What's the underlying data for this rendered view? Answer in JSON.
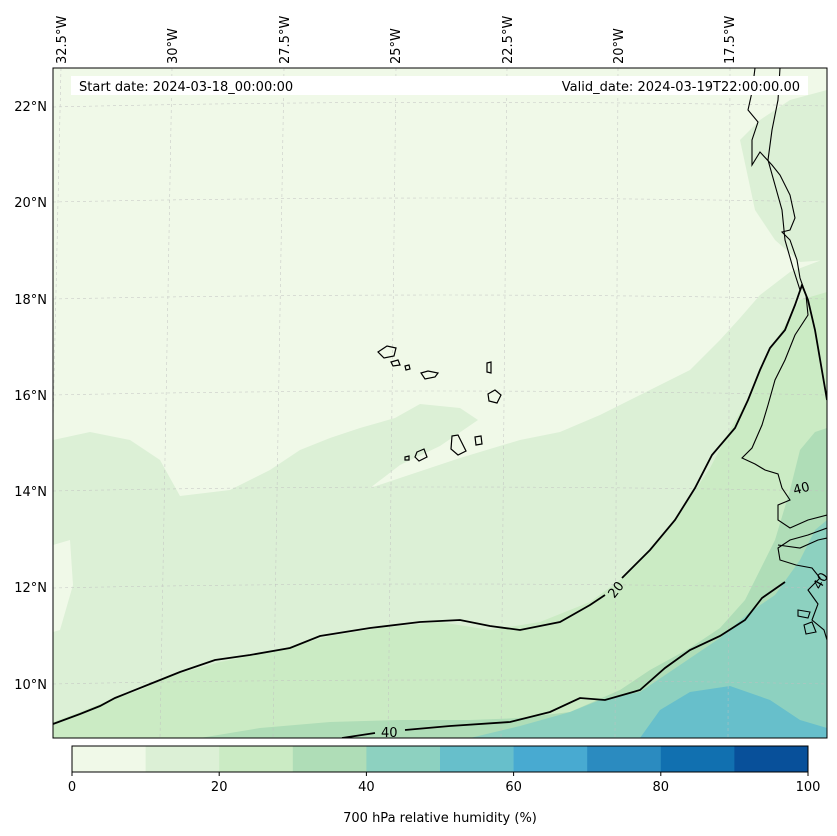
{
  "map": {
    "start_date_text": "Start date: 2024-03-18_00:00:00",
    "valid_date_text": "Valid_date: 2024-03-19T22:00:00.00",
    "lon_labels": [
      "32.5°W",
      "30°W",
      "27.5°W",
      "25°W",
      "22.5°W",
      "20°W",
      "17.5°W"
    ],
    "lat_labels": [
      "22°N",
      "20°N",
      "18°N",
      "16°N",
      "14°N",
      "12°N",
      "10°N"
    ],
    "contour_labels": [
      "20",
      "40",
      "40",
      "40"
    ],
    "variable": "700 hPa relative humidity (%)"
  },
  "colorbar": {
    "ticks": [
      "0",
      "20",
      "40",
      "60",
      "80",
      "100"
    ],
    "label": "700 hPa relative humidity (%)",
    "levels": [
      0,
      10,
      20,
      30,
      40,
      50,
      60,
      70,
      80,
      90,
      100
    ],
    "colors": [
      "#f0f9e8",
      "#dcf0d6",
      "#cbebc4",
      "#afddb7",
      "#8dd1c0",
      "#67bfcb",
      "#48aad1",
      "#2b8bc0",
      "#1170b0",
      "#08509a"
    ]
  }
}
